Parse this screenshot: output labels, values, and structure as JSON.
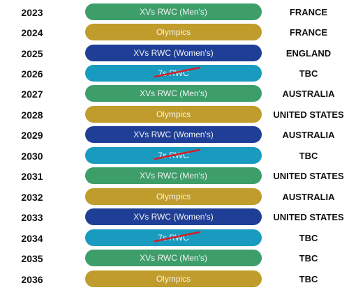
{
  "colors": {
    "mens": "#3d9e6a",
    "olympics": "#bf9c2b",
    "womens": "#1f3e96",
    "sevens": "#199bc0",
    "strike": "#d0202a"
  },
  "rows": [
    {
      "year": "2023",
      "event": "XVs RWC (Men's)",
      "host": "FRANCE"
    },
    {
      "year": "2024",
      "event": "Olympics",
      "host": "FRANCE"
    },
    {
      "year": "2025",
      "event": "XVs RWC (Women's)",
      "host": "ENGLAND"
    },
    {
      "year": "2026",
      "event": "7s RWC",
      "host": "TBC"
    },
    {
      "year": "2027",
      "event": "XVs RWC (Men's)",
      "host": "AUSTRALIA"
    },
    {
      "year": "2028",
      "event": "Olympics",
      "host": "UNITED STATES"
    },
    {
      "year": "2029",
      "event": "XVs RWC (Women's)",
      "host": "AUSTRALIA"
    },
    {
      "year": "2030",
      "event": "7s RWC",
      "host": "TBC"
    },
    {
      "year": "2031",
      "event": "XVs RWC (Men's)",
      "host": "UNITED STATES"
    },
    {
      "year": "2032",
      "event": "Olympics",
      "host": "AUSTRALIA"
    },
    {
      "year": "2033",
      "event": "XVs RWC (Women's)",
      "host": "UNITED STATES"
    },
    {
      "year": "2034",
      "event": "7s RWC",
      "host": "TBC"
    },
    {
      "year": "2035",
      "event": "XVs RWC (Men's)",
      "host": "TBC"
    },
    {
      "year": "2036",
      "event": "Olympics",
      "host": "TBC"
    }
  ]
}
